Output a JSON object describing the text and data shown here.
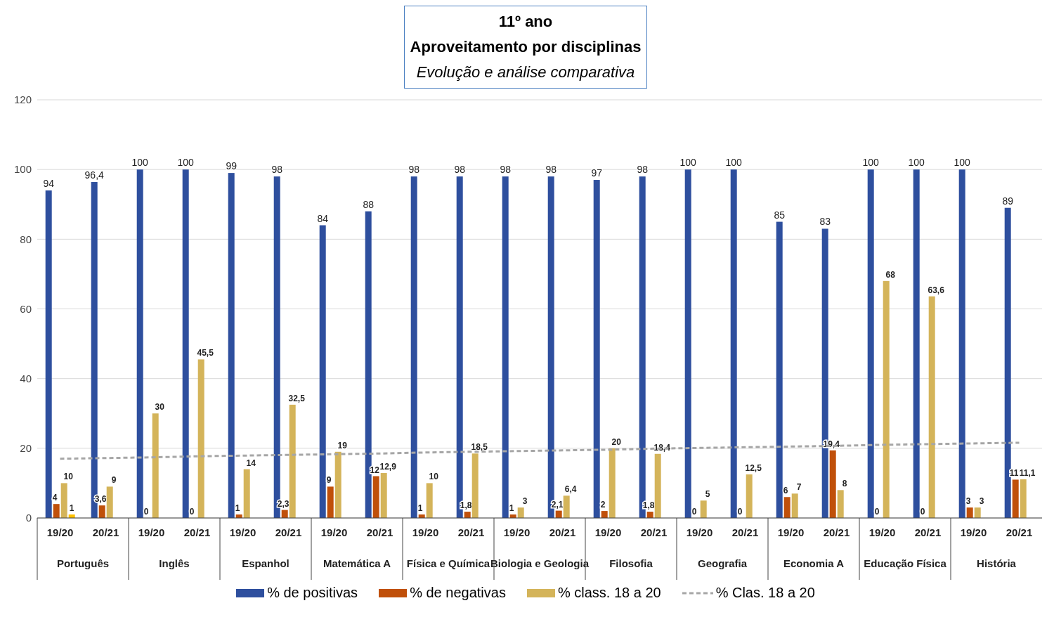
{
  "chart_data": {
    "type": "bar",
    "title": "11º ano",
    "subtitle": "Aproveitamento por disciplinas\nEvolução e análise comparativa",
    "categories": [
      "19/20",
      "20/21",
      "19/20",
      "20/21",
      "19/20",
      "20/21",
      "19/20",
      "20/21",
      "19/20",
      "20/21",
      "19/20",
      "20/21",
      "19/20",
      "20/21",
      "19/20",
      "20/21",
      "19/20",
      "20/21",
      "19/20",
      "20/21",
      "19/20",
      "20/21"
    ],
    "annotations": [
      "Português",
      "Inglês",
      "Espanhol",
      "Matemática A",
      "Física e Química",
      "Biologia e Geologia",
      "Filosofia",
      "Geografia",
      "Economia A",
      "Educação Física",
      "História"
    ],
    "series": [
      {
        "name": "% de positivas",
        "color": "#2e4f9e",
        "values": [
          94,
          96.4,
          100,
          100,
          99,
          98,
          84,
          88,
          98,
          98,
          98,
          98,
          97,
          98,
          100,
          100,
          85,
          83,
          100,
          100,
          100,
          89
        ],
        "value_labels": [
          "94",
          "96,4",
          "100",
          "100",
          "99",
          "98",
          "84",
          "88",
          "98",
          "98",
          "98",
          "98",
          "97",
          "98",
          "100",
          "100",
          "85",
          "83",
          "100",
          "100",
          "100",
          "89"
        ]
      },
      {
        "name": "% de negativas",
        "color": "#c0500a",
        "values": [
          4,
          3.6,
          0,
          0,
          1,
          2.3,
          9,
          12,
          1,
          1.8,
          1,
          2.1,
          2,
          1.8,
          0,
          0,
          6,
          19.4,
          0,
          0,
          3,
          11
        ],
        "value_labels": [
          "4",
          "3,6",
          "0",
          "0",
          "1",
          "2,3",
          "9",
          "12",
          "1",
          "1,8",
          "1",
          "2,1",
          "2",
          "1,8",
          "0",
          "0",
          "6",
          "19,4",
          "0",
          "0",
          "3",
          "11"
        ]
      },
      {
        "name": "% class. 18 a 20",
        "color": "#d4b45a",
        "values": [
          10,
          9,
          30,
          45.5,
          14,
          32.5,
          19,
          12.9,
          10,
          18.5,
          3,
          6.4,
          20,
          18.4,
          5,
          12.5,
          7,
          8,
          68,
          63.6,
          3,
          11.1
        ],
        "value_labels": [
          "10",
          "9",
          "30",
          "45,5",
          "14",
          "32,5",
          "19",
          "12,9",
          "10",
          "18,5",
          "3",
          "6,4",
          "20",
          "18,4",
          "5",
          "12,5",
          "7",
          "8",
          "68",
          "63,6",
          "3",
          "11,1"
        ]
      },
      {
        "color": "#ffc000",
        "values": [
          1,
          null,
          null,
          null,
          null,
          null,
          null,
          null,
          null,
          null,
          null,
          null,
          null,
          null,
          null,
          null,
          null,
          null,
          null,
          null,
          null,
          null
        ],
        "value_labels": [
          "1",
          null,
          null,
          null,
          null,
          null,
          null,
          null,
          null,
          null,
          null,
          null,
          null,
          null,
          null,
          null,
          null,
          null,
          null,
          null,
          null,
          null
        ]
      },
      {
        "name": "% Clas. 18 a 20",
        "type": "line",
        "color": "#a6a6a6",
        "line_style": "dashed",
        "marker": "none",
        "values": [
          17.0,
          17.2,
          17.4,
          17.7,
          17.9,
          18.1,
          18.3,
          18.5,
          18.8,
          19.0,
          19.2,
          19.4,
          19.6,
          19.9,
          20.1,
          20.3,
          20.5,
          20.7,
          21.0,
          21.2,
          21.4,
          21.6
        ]
      }
    ],
    "ylim": [
      0,
      120
    ],
    "yticks": [
      0,
      20,
      40,
      60,
      80,
      100,
      120
    ],
    "grid": "y",
    "legend": "bottom"
  }
}
